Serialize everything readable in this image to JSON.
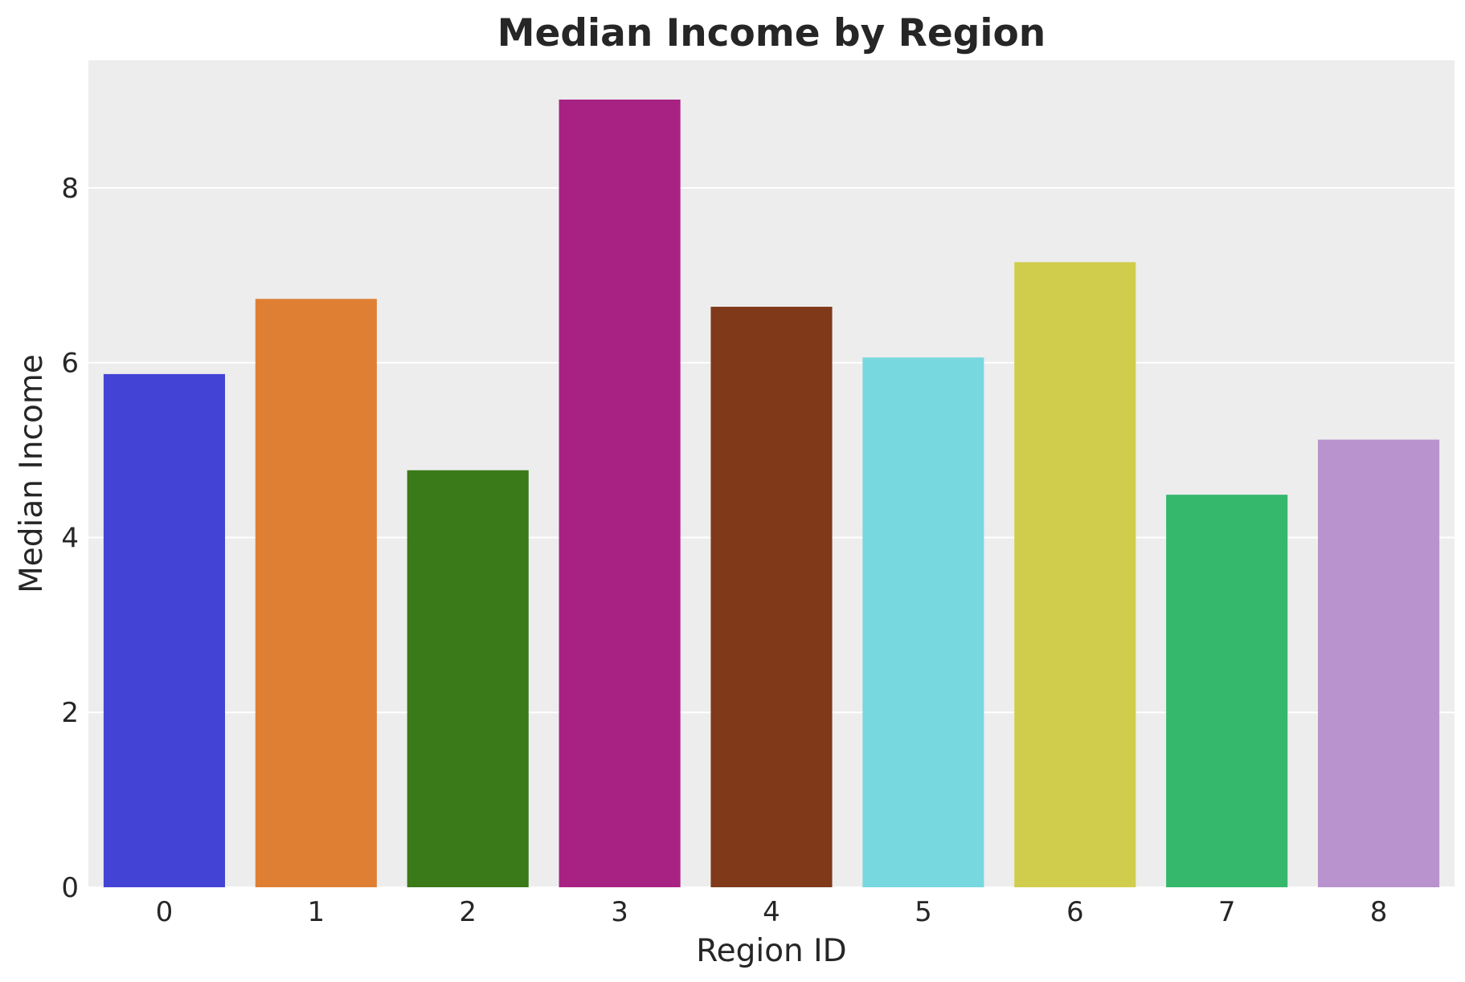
{
  "chart_data": {
    "type": "bar",
    "title": "Median Income by Region",
    "xlabel": "Region ID",
    "ylabel": "Median Income",
    "categories": [
      "0",
      "1",
      "2",
      "3",
      "4",
      "5",
      "6",
      "7",
      "8"
    ],
    "values": [
      5.87,
      6.73,
      4.77,
      9.01,
      6.64,
      6.06,
      7.15,
      4.49,
      5.12
    ],
    "colors": [
      "#4343d6",
      "#df7f33",
      "#3a7a19",
      "#a82284",
      "#803a19",
      "#78d8e0",
      "#d1cd4c",
      "#35b86b",
      "#b993ce"
    ],
    "ylim": [
      0,
      9.46
    ],
    "yticks": [
      0,
      2,
      4,
      6,
      8
    ],
    "grid": "horizontal",
    "background": "#ededed"
  }
}
